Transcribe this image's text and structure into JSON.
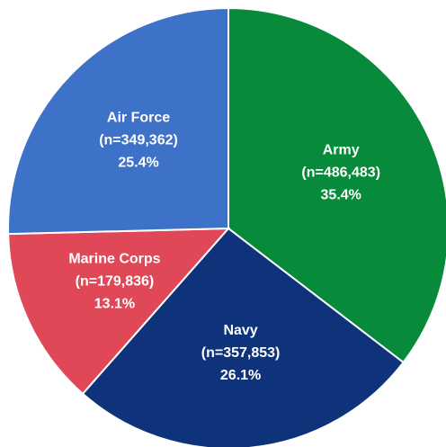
{
  "chart_data": {
    "type": "pie",
    "categories": [
      "Army",
      "Navy",
      "Marine Corps",
      "Air Force"
    ],
    "values": [
      35.4,
      26.1,
      13.1,
      25.4
    ],
    "value_labels": [
      "35.4%",
      "26.1%",
      "13.1%",
      "25.4%"
    ],
    "counts": [
      486483,
      357853,
      179836,
      349362
    ],
    "count_labels": [
      "(n=486,483)",
      "(n=357,853)",
      "(n=179,836)",
      "(n=349,362)"
    ],
    "colors": [
      "#078a3a",
      "#0e337a",
      "#e04858",
      "#3d72c8"
    ]
  }
}
